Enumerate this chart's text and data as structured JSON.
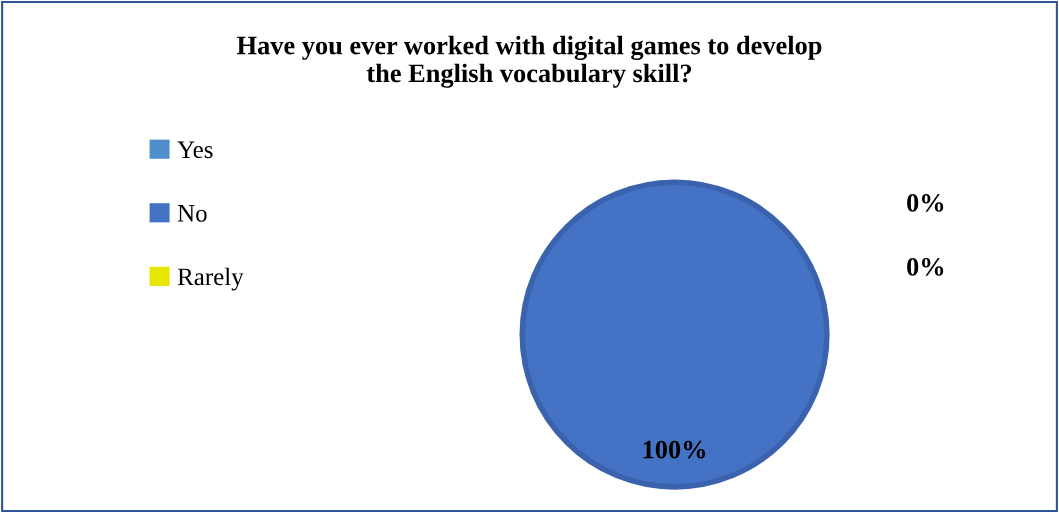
{
  "chart_data": {
    "type": "pie",
    "title": "Have you ever worked with digital games to develop\nthe English vocabulary skill?",
    "categories": [
      "Yes",
      "No",
      "Rarely"
    ],
    "values": [
      0,
      100,
      0
    ],
    "colors": [
      "#4f8fcc",
      "#4472c4",
      "#e6e600"
    ],
    "value_labels": [
      "0%",
      "100%",
      "0%"
    ],
    "legend": "left"
  }
}
